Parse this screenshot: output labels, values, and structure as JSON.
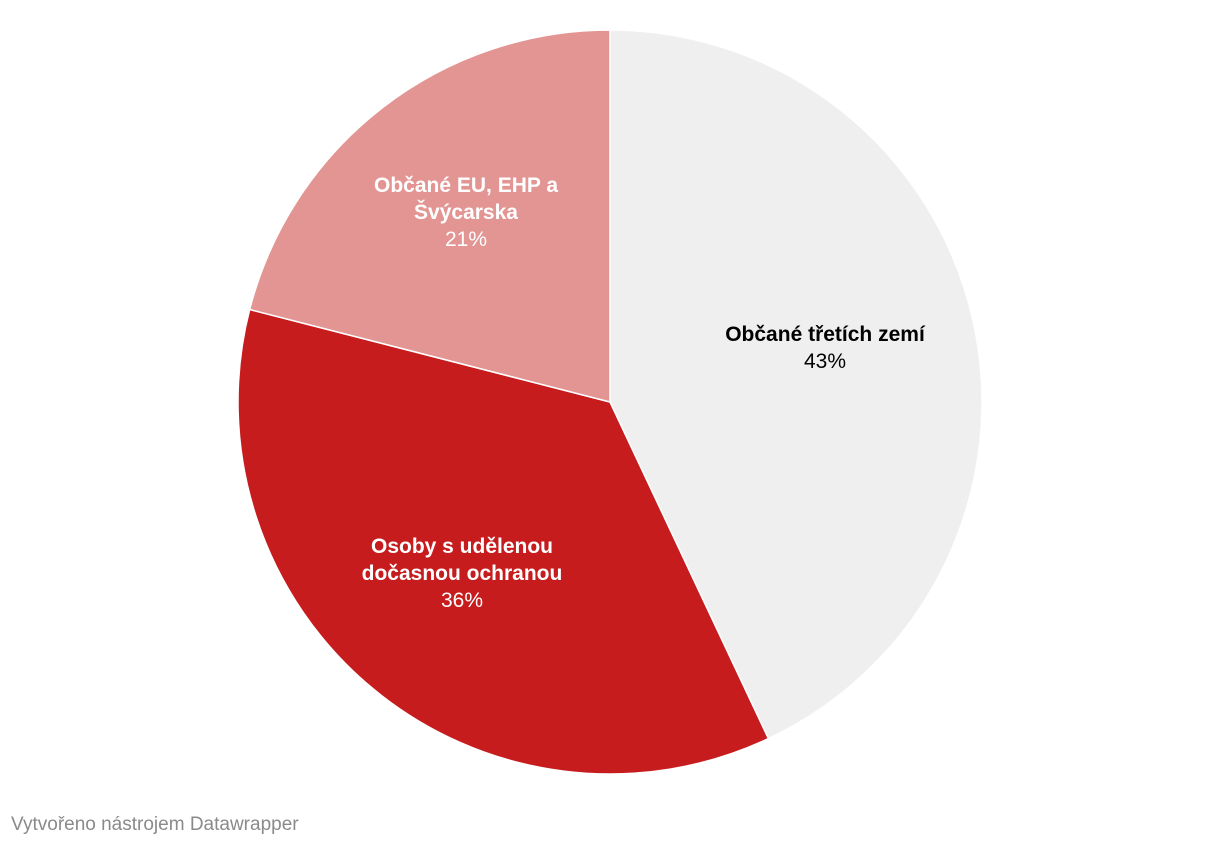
{
  "chart_data": {
    "type": "pie",
    "title": "",
    "slices": [
      {
        "label_lines": [
          "Občané třetích zemí"
        ],
        "value": 43,
        "value_label": "43%",
        "color": "#efefef",
        "text_color": "#000000"
      },
      {
        "label_lines": [
          "Osoby s udělenou",
          "dočasnou ochranou"
        ],
        "value": 36,
        "value_label": "36%",
        "color": "#c61c1d",
        "text_color": "#ffffff"
      },
      {
        "label_lines": [
          "Občané EU, EHP a",
          "Švýcarska"
        ],
        "value": 21,
        "value_label": "21%",
        "color": "#e29592",
        "text_color": "#ffffff"
      }
    ],
    "start": "12 o'clock",
    "direction": "clockwise"
  },
  "footer": {
    "credit": "Vytvořeno nástrojem Datawrapper"
  }
}
